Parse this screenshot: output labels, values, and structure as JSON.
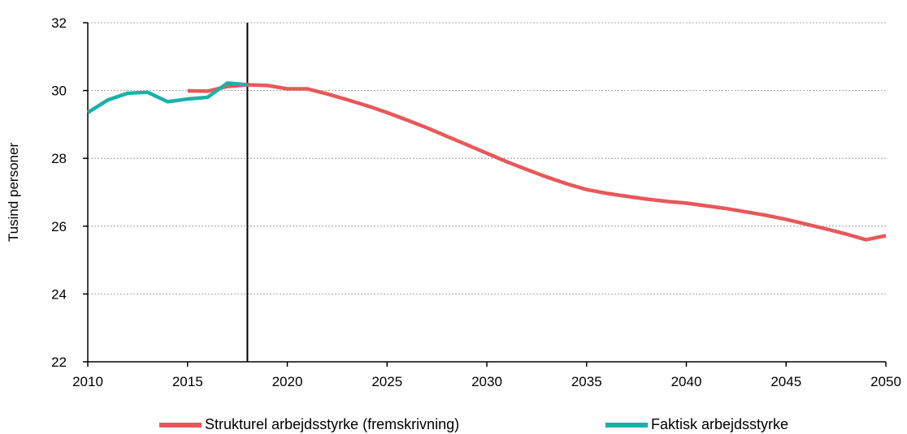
{
  "chart_data": {
    "type": "line",
    "title": "",
    "xlabel": "",
    "ylabel": "Tusind personer",
    "xlim": [
      2010,
      2050
    ],
    "ylim": [
      22,
      32
    ],
    "x_ticks": [
      "2010",
      "2015",
      "2020",
      "2025",
      "2030",
      "2035",
      "2040",
      "2045",
      "2050"
    ],
    "y_ticks": [
      "22",
      "24",
      "26",
      "28",
      "30",
      "32"
    ],
    "grid": "horizontal dashed",
    "vertical_marker_x": 2018,
    "legend_position": "bottom",
    "series": [
      {
        "name": "Strukturel arbejdsstyrke (fremskrivning)",
        "color": "#e8585a",
        "x": [
          2015,
          2016,
          2017,
          2018,
          2019,
          2020,
          2021,
          2022,
          2023,
          2024,
          2025,
          2026,
          2027,
          2028,
          2029,
          2030,
          2031,
          2032,
          2033,
          2034,
          2035,
          2036,
          2037,
          2038,
          2039,
          2040,
          2041,
          2042,
          2043,
          2044,
          2045,
          2046,
          2047,
          2048,
          2049,
          2050
        ],
        "values": [
          29.99,
          29.98,
          30.12,
          30.17,
          30.15,
          30.05,
          30.05,
          29.9,
          29.73,
          29.55,
          29.35,
          29.13,
          28.9,
          28.65,
          28.4,
          28.15,
          27.9,
          27.67,
          27.45,
          27.25,
          27.08,
          26.97,
          26.88,
          26.8,
          26.73,
          26.68,
          26.6,
          26.52,
          26.42,
          26.32,
          26.2,
          26.06,
          25.92,
          25.77,
          25.6,
          25.72
        ]
      },
      {
        "name": "Faktisk arbejdsstyrke",
        "color": "#1bb1a8",
        "x": [
          2010,
          2011,
          2012,
          2013,
          2014,
          2015,
          2016,
          2017,
          2018
        ],
        "values": [
          29.35,
          29.72,
          29.92,
          29.95,
          29.67,
          29.75,
          29.8,
          30.22,
          30.17
        ]
      }
    ]
  }
}
